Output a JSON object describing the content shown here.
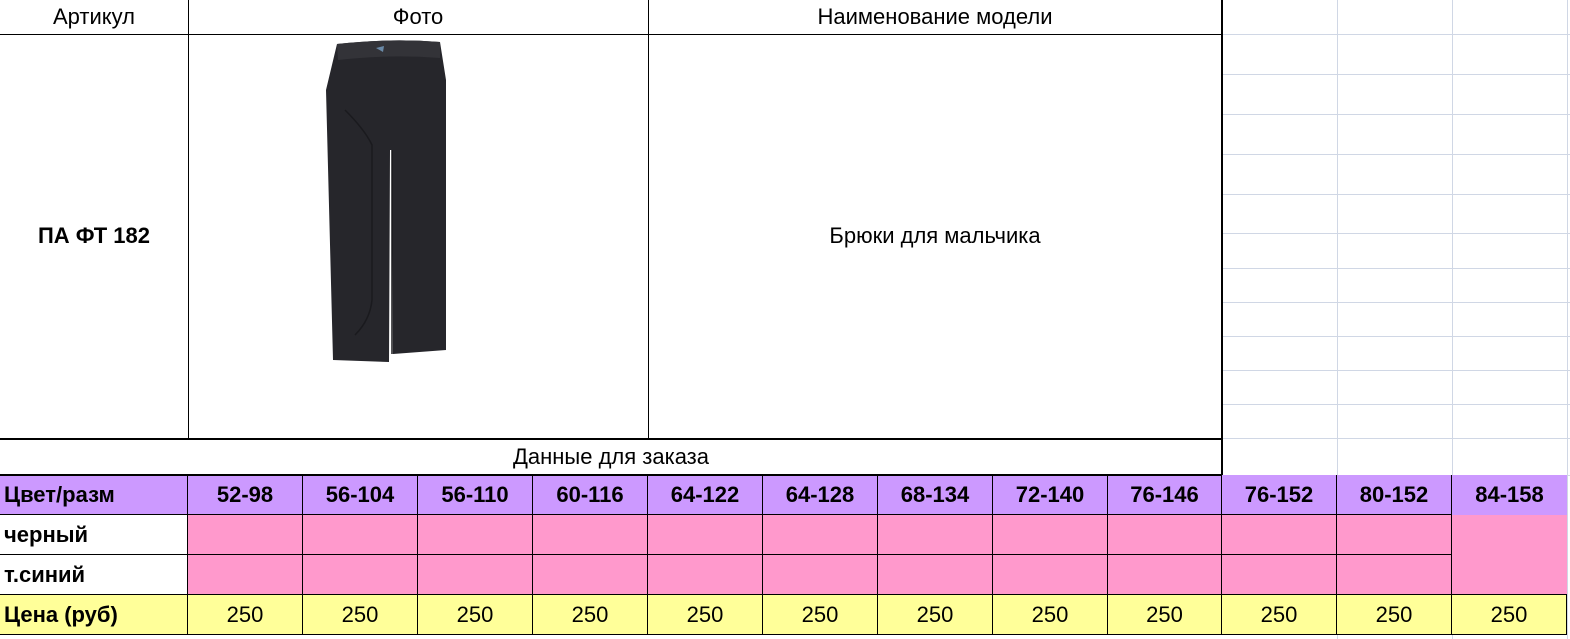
{
  "header": {
    "article_label": "Артикул",
    "photo_label": "Фото",
    "name_label": "Наименование модели"
  },
  "product": {
    "article": "ПА ФТ 182",
    "name": "Брюки для мальчика",
    "photo_icon": "black-pants-photo"
  },
  "order_section": {
    "title": "Данные для заказа",
    "size_row_label": "Цвет/разм",
    "sizes": [
      "52-98",
      "56-104",
      "56-110",
      "60-116",
      "64-122",
      "64-128",
      "68-134",
      "72-140",
      "76-146",
      "76-152",
      "80-152",
      "84-158"
    ],
    "colors": [
      "черный",
      "т.синий"
    ],
    "price_label": "Цена (руб)",
    "prices": [
      "250",
      "250",
      "250",
      "250",
      "250",
      "250",
      "250",
      "250",
      "250",
      "250",
      "250",
      "250"
    ]
  },
  "colors": {
    "size_row": "#cc99ff",
    "color_rows": "#ff99cc",
    "price_row": "#ffff99",
    "gridline": "#d0d7e5"
  }
}
